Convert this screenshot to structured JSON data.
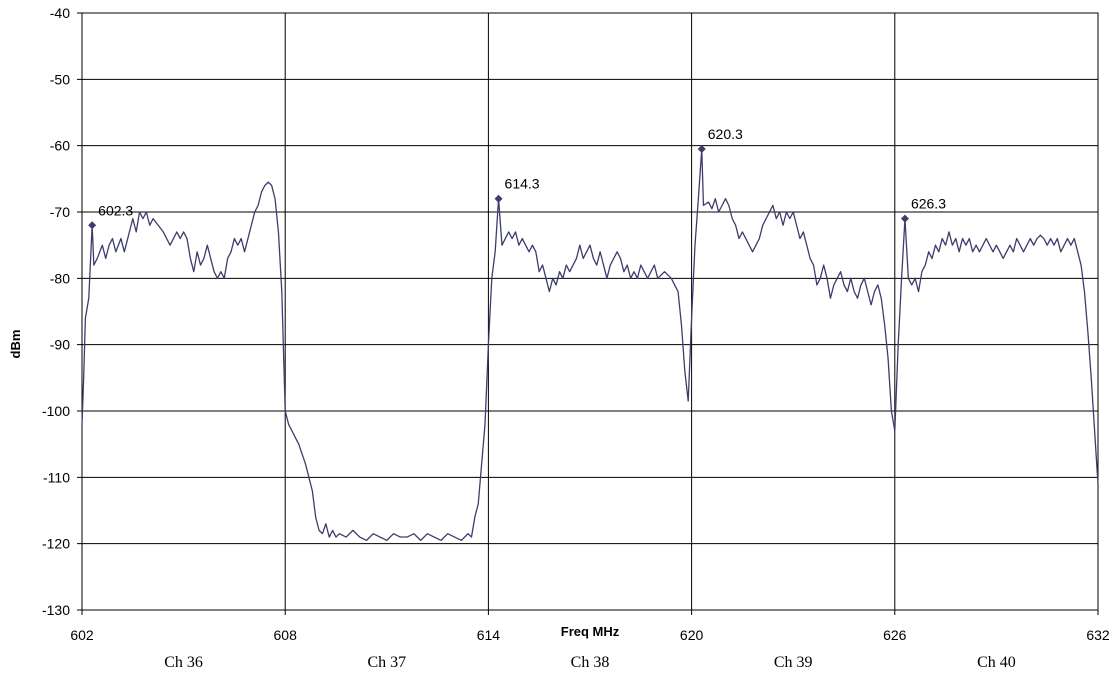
{
  "chart_data": {
    "type": "line",
    "title": "",
    "xlabel": "Freq MHz",
    "ylabel": "dBm",
    "xlim": [
      602,
      632
    ],
    "ylim": [
      -130,
      -40
    ],
    "x_ticks": [
      "602",
      "608",
      "614",
      "620",
      "626",
      "632"
    ],
    "y_ticks": [
      "-40",
      "-50",
      "-60",
      "-70",
      "-80",
      "-90",
      "-100",
      "-110",
      "-120",
      "-130"
    ],
    "grid": true,
    "colors": {
      "line": "#3c3c6e",
      "marker": "#3c3c6e",
      "grid": "#000000"
    },
    "channels": [
      {
        "label": "Ch 36",
        "center": 605
      },
      {
        "label": "Ch 37",
        "center": 611
      },
      {
        "label": "Ch 38",
        "center": 617
      },
      {
        "label": "Ch 39",
        "center": 623
      },
      {
        "label": "Ch 40",
        "center": 629
      }
    ],
    "markers": [
      {
        "x": 602.3,
        "y": -72,
        "label": "602.3"
      },
      {
        "x": 614.3,
        "y": -68,
        "label": "614.3"
      },
      {
        "x": 620.3,
        "y": -60.5,
        "label": "620.3"
      },
      {
        "x": 626.3,
        "y": -71,
        "label": "626.3"
      }
    ],
    "series": [
      {
        "values": [
          [
            602.0,
            -102
          ],
          [
            602.05,
            -95
          ],
          [
            602.1,
            -86
          ],
          [
            602.2,
            -83
          ],
          [
            602.3,
            -72
          ],
          [
            602.35,
            -78
          ],
          [
            602.45,
            -77
          ],
          [
            602.6,
            -75
          ],
          [
            602.7,
            -77
          ],
          [
            602.8,
            -75
          ],
          [
            602.9,
            -74
          ],
          [
            603.0,
            -76
          ],
          [
            603.15,
            -74
          ],
          [
            603.25,
            -76
          ],
          [
            603.4,
            -73
          ],
          [
            603.5,
            -71
          ],
          [
            603.6,
            -73
          ],
          [
            603.7,
            -70
          ],
          [
            603.8,
            -71
          ],
          [
            603.9,
            -70
          ],
          [
            604.0,
            -72
          ],
          [
            604.1,
            -71
          ],
          [
            604.25,
            -72
          ],
          [
            604.4,
            -73
          ],
          [
            604.5,
            -74
          ],
          [
            604.6,
            -75
          ],
          [
            604.7,
            -74
          ],
          [
            604.8,
            -73
          ],
          [
            604.9,
            -74
          ],
          [
            605.0,
            -73
          ],
          [
            605.1,
            -74
          ],
          [
            605.2,
            -77
          ],
          [
            605.3,
            -79
          ],
          [
            605.4,
            -76
          ],
          [
            605.5,
            -78
          ],
          [
            605.6,
            -77
          ],
          [
            605.7,
            -75
          ],
          [
            605.8,
            -77
          ],
          [
            605.9,
            -79
          ],
          [
            606.0,
            -80
          ],
          [
            606.1,
            -79
          ],
          [
            606.2,
            -80
          ],
          [
            606.3,
            -77
          ],
          [
            606.4,
            -76
          ],
          [
            606.5,
            -74
          ],
          [
            606.6,
            -75
          ],
          [
            606.7,
            -74
          ],
          [
            606.8,
            -76
          ],
          [
            606.9,
            -74
          ],
          [
            607.0,
            -72
          ],
          [
            607.1,
            -70
          ],
          [
            607.2,
            -69
          ],
          [
            607.3,
            -67
          ],
          [
            607.4,
            -66
          ],
          [
            607.5,
            -65.5
          ],
          [
            607.6,
            -66
          ],
          [
            607.7,
            -68
          ],
          [
            607.8,
            -73
          ],
          [
            607.9,
            -82
          ],
          [
            608.0,
            -100
          ],
          [
            608.1,
            -102
          ],
          [
            608.2,
            -103
          ],
          [
            608.4,
            -105
          ],
          [
            608.6,
            -108
          ],
          [
            608.8,
            -112
          ],
          [
            608.9,
            -116
          ],
          [
            609.0,
            -118
          ],
          [
            609.1,
            -118.5
          ],
          [
            609.2,
            -117
          ],
          [
            609.3,
            -119
          ],
          [
            609.4,
            -118
          ],
          [
            609.5,
            -119
          ],
          [
            609.6,
            -118.5
          ],
          [
            609.8,
            -119
          ],
          [
            610.0,
            -118
          ],
          [
            610.2,
            -119
          ],
          [
            610.4,
            -119.5
          ],
          [
            610.6,
            -118.5
          ],
          [
            610.8,
            -119
          ],
          [
            611.0,
            -119.5
          ],
          [
            611.2,
            -118.5
          ],
          [
            611.4,
            -119
          ],
          [
            611.6,
            -119
          ],
          [
            611.8,
            -118.5
          ],
          [
            612.0,
            -119.5
          ],
          [
            612.2,
            -118.5
          ],
          [
            612.4,
            -119
          ],
          [
            612.6,
            -119.5
          ],
          [
            612.8,
            -118.5
          ],
          [
            613.0,
            -119
          ],
          [
            613.2,
            -119.5
          ],
          [
            613.4,
            -118.5
          ],
          [
            613.5,
            -119
          ],
          [
            613.6,
            -116
          ],
          [
            613.7,
            -114
          ],
          [
            613.8,
            -108
          ],
          [
            613.9,
            -102
          ],
          [
            614.0,
            -90
          ],
          [
            614.1,
            -80
          ],
          [
            614.2,
            -76
          ],
          [
            614.3,
            -68
          ],
          [
            614.4,
            -75
          ],
          [
            614.5,
            -74
          ],
          [
            614.6,
            -73
          ],
          [
            614.7,
            -74
          ],
          [
            614.8,
            -73
          ],
          [
            614.9,
            -75
          ],
          [
            615.0,
            -74
          ],
          [
            615.1,
            -75
          ],
          [
            615.2,
            -76
          ],
          [
            615.3,
            -75
          ],
          [
            615.4,
            -76
          ],
          [
            615.5,
            -79
          ],
          [
            615.6,
            -78
          ],
          [
            615.7,
            -80
          ],
          [
            615.8,
            -82
          ],
          [
            615.9,
            -80
          ],
          [
            616.0,
            -81
          ],
          [
            616.1,
            -79
          ],
          [
            616.2,
            -80
          ],
          [
            616.3,
            -78
          ],
          [
            616.4,
            -79
          ],
          [
            616.5,
            -78
          ],
          [
            616.6,
            -77
          ],
          [
            616.7,
            -75
          ],
          [
            616.8,
            -77
          ],
          [
            616.9,
            -76
          ],
          [
            617.0,
            -75
          ],
          [
            617.1,
            -77
          ],
          [
            617.2,
            -78
          ],
          [
            617.3,
            -76
          ],
          [
            617.4,
            -78
          ],
          [
            617.5,
            -80
          ],
          [
            617.6,
            -78
          ],
          [
            617.7,
            -77
          ],
          [
            617.8,
            -76
          ],
          [
            617.9,
            -77
          ],
          [
            618.0,
            -79
          ],
          [
            618.1,
            -78
          ],
          [
            618.2,
            -80
          ],
          [
            618.3,
            -79
          ],
          [
            618.4,
            -80
          ],
          [
            618.5,
            -78
          ],
          [
            618.6,
            -79
          ],
          [
            618.7,
            -80
          ],
          [
            618.8,
            -79
          ],
          [
            618.9,
            -78
          ],
          [
            619.0,
            -80
          ],
          [
            619.2,
            -79
          ],
          [
            619.4,
            -80
          ],
          [
            619.6,
            -82
          ],
          [
            619.7,
            -87
          ],
          [
            619.8,
            -94
          ],
          [
            619.9,
            -98.5
          ],
          [
            620.0,
            -86
          ],
          [
            620.1,
            -75
          ],
          [
            620.2,
            -68
          ],
          [
            620.3,
            -60.5
          ],
          [
            620.35,
            -69
          ],
          [
            620.5,
            -68.5
          ],
          [
            620.6,
            -69.5
          ],
          [
            620.7,
            -68
          ],
          [
            620.8,
            -70
          ],
          [
            620.9,
            -69
          ],
          [
            621.0,
            -68
          ],
          [
            621.1,
            -69
          ],
          [
            621.2,
            -71
          ],
          [
            621.3,
            -72
          ],
          [
            621.4,
            -74
          ],
          [
            621.5,
            -73
          ],
          [
            621.6,
            -74
          ],
          [
            621.7,
            -75
          ],
          [
            621.8,
            -76
          ],
          [
            621.9,
            -75
          ],
          [
            622.0,
            -74
          ],
          [
            622.1,
            -72
          ],
          [
            622.2,
            -71
          ],
          [
            622.3,
            -70
          ],
          [
            622.4,
            -69
          ],
          [
            622.5,
            -71
          ],
          [
            622.6,
            -70
          ],
          [
            622.7,
            -72
          ],
          [
            622.8,
            -70
          ],
          [
            622.9,
            -71
          ],
          [
            623.0,
            -70
          ],
          [
            623.1,
            -72
          ],
          [
            623.2,
            -74
          ],
          [
            623.3,
            -73
          ],
          [
            623.4,
            -75
          ],
          [
            623.5,
            -77
          ],
          [
            623.6,
            -78
          ],
          [
            623.7,
            -81
          ],
          [
            623.8,
            -80
          ],
          [
            623.9,
            -78
          ],
          [
            624.0,
            -80
          ],
          [
            624.1,
            -83
          ],
          [
            624.2,
            -81
          ],
          [
            624.3,
            -80
          ],
          [
            624.4,
            -79
          ],
          [
            624.5,
            -81
          ],
          [
            624.6,
            -82
          ],
          [
            624.7,
            -80
          ],
          [
            624.8,
            -82
          ],
          [
            624.9,
            -83
          ],
          [
            625.0,
            -81
          ],
          [
            625.1,
            -80
          ],
          [
            625.2,
            -82
          ],
          [
            625.3,
            -84
          ],
          [
            625.4,
            -82
          ],
          [
            625.5,
            -81
          ],
          [
            625.6,
            -83
          ],
          [
            625.7,
            -87
          ],
          [
            625.8,
            -92
          ],
          [
            625.9,
            -100
          ],
          [
            626.0,
            -103
          ],
          [
            626.1,
            -90
          ],
          [
            626.2,
            -80
          ],
          [
            626.3,
            -71
          ],
          [
            626.4,
            -80
          ],
          [
            626.5,
            -81
          ],
          [
            626.6,
            -80
          ],
          [
            626.7,
            -82
          ],
          [
            626.8,
            -79
          ],
          [
            626.9,
            -78
          ],
          [
            627.0,
            -76
          ],
          [
            627.1,
            -77
          ],
          [
            627.2,
            -75
          ],
          [
            627.3,
            -76
          ],
          [
            627.4,
            -74
          ],
          [
            627.5,
            -75
          ],
          [
            627.6,
            -73
          ],
          [
            627.7,
            -75
          ],
          [
            627.8,
            -74
          ],
          [
            627.9,
            -76
          ],
          [
            628.0,
            -74
          ],
          [
            628.1,
            -75
          ],
          [
            628.2,
            -74
          ],
          [
            628.3,
            -76
          ],
          [
            628.4,
            -75
          ],
          [
            628.5,
            -76
          ],
          [
            628.6,
            -75
          ],
          [
            628.7,
            -74
          ],
          [
            628.8,
            -75
          ],
          [
            628.9,
            -76
          ],
          [
            629.0,
            -75
          ],
          [
            629.1,
            -76
          ],
          [
            629.2,
            -77
          ],
          [
            629.3,
            -76
          ],
          [
            629.4,
            -75
          ],
          [
            629.5,
            -76
          ],
          [
            629.6,
            -74
          ],
          [
            629.7,
            -75
          ],
          [
            629.8,
            -76
          ],
          [
            629.9,
            -75
          ],
          [
            630.0,
            -74
          ],
          [
            630.1,
            -75
          ],
          [
            630.2,
            -74
          ],
          [
            630.3,
            -73.5
          ],
          [
            630.4,
            -74
          ],
          [
            630.5,
            -75
          ],
          [
            630.6,
            -74
          ],
          [
            630.7,
            -75
          ],
          [
            630.8,
            -74
          ],
          [
            630.9,
            -76
          ],
          [
            631.0,
            -75
          ],
          [
            631.1,
            -74
          ],
          [
            631.2,
            -75
          ],
          [
            631.3,
            -74
          ],
          [
            631.4,
            -76
          ],
          [
            631.5,
            -78
          ],
          [
            631.6,
            -82
          ],
          [
            631.7,
            -88
          ],
          [
            631.8,
            -95
          ],
          [
            631.9,
            -103
          ],
          [
            632.0,
            -111
          ]
        ]
      }
    ]
  }
}
